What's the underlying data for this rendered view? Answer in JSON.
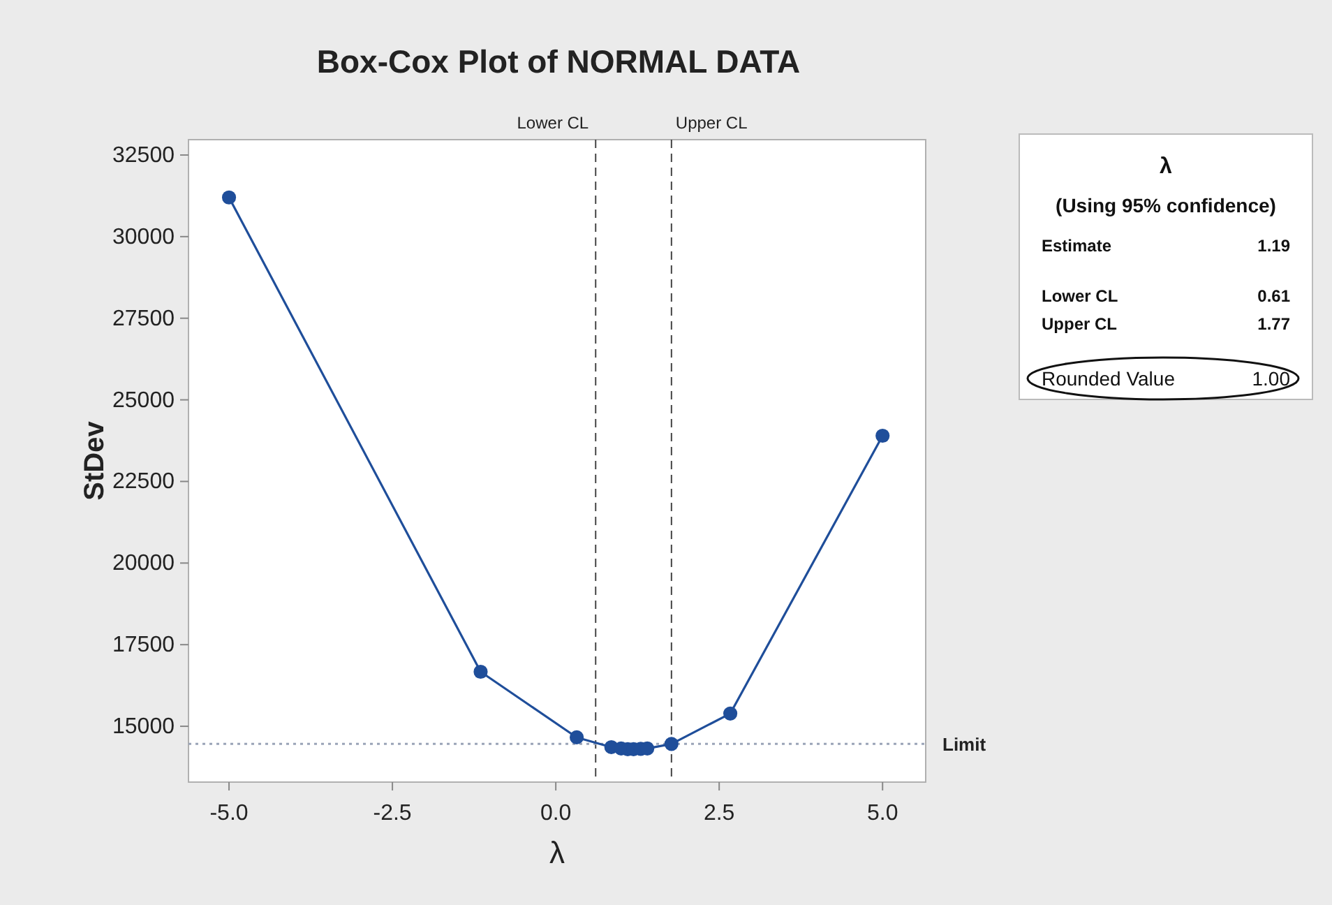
{
  "chart_data": {
    "type": "line",
    "title": "Box-Cox Plot of NORMAL DATA",
    "xlabel": "λ",
    "ylabel": "StDev",
    "x": [
      -5,
      -1.15,
      0.32,
      0.85,
      1.0,
      1.1,
      1.19,
      1.3,
      1.4,
      1.77,
      2.67,
      5
    ],
    "series": [
      {
        "color": "#1f4e9a",
        "values": [
          31200,
          16670,
          14660,
          14360,
          14320,
          14300,
          14300,
          14310,
          14320,
          14460,
          15390,
          23900
        ]
      }
    ],
    "xlim": [
      -5.62,
      5.66
    ],
    "ylim": [
      13290,
      32970
    ],
    "xticks": [
      {
        "value": -5,
        "label": "-5.0"
      },
      {
        "value": -2.5,
        "label": "-2.5"
      },
      {
        "value": 0,
        "label": "0.0"
      },
      {
        "value": 2.5,
        "label": "2.5"
      },
      {
        "value": 5,
        "label": "5.0"
      }
    ],
    "yticks": [
      15000,
      17500,
      20000,
      22500,
      25000,
      27500,
      30000,
      32500
    ],
    "ref_lines": [
      {
        "axis": "x",
        "value": 0.61,
        "label": "Lower CL",
        "line_style": "dashed",
        "color": "#444444"
      },
      {
        "axis": "x",
        "value": 1.77,
        "label": "Upper CL",
        "line_style": "dashed",
        "color": "#444444"
      },
      {
        "axis": "y",
        "value": 14460,
        "label": "Limit",
        "line_style": "dotted",
        "color": "#9aa4b8"
      }
    ],
    "annotations": [
      "λ",
      "(Using 95% confidence)",
      "Estimate",
      "1.19",
      "Lower CL",
      "0.61",
      "Upper CL",
      "1.77",
      "Rounded Value",
      "1.00"
    ],
    "marker": "circle",
    "grid": false
  }
}
